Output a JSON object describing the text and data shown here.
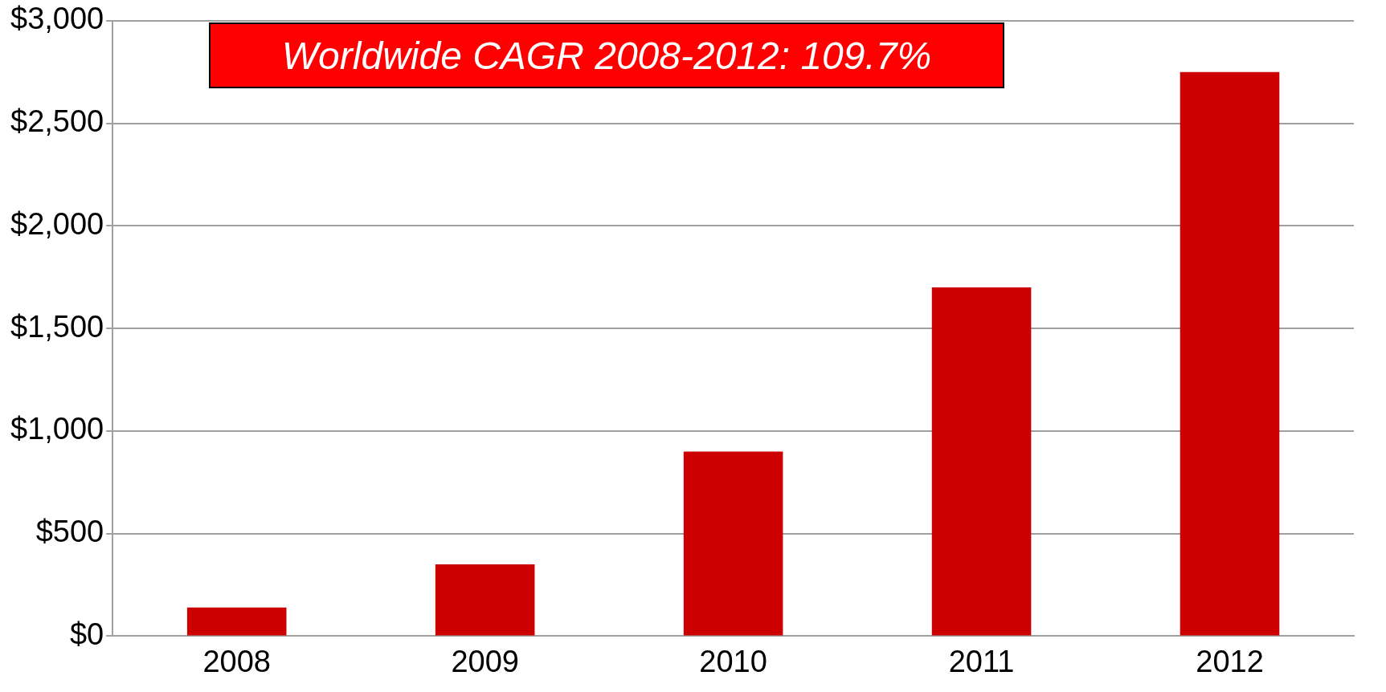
{
  "chart_data": {
    "type": "bar",
    "title": "Worldwide CAGR 2008-2012: 109.7%",
    "categories": [
      "2008",
      "2009",
      "2010",
      "2011",
      "2012"
    ],
    "values": [
      140,
      350,
      900,
      1700,
      2750
    ],
    "color": "#cc0000",
    "ylim": [
      0,
      3000
    ],
    "yticks": [
      {
        "value": 0,
        "label": "$0"
      },
      {
        "value": 500,
        "label": "$500"
      },
      {
        "value": 1000,
        "label": "$1,000"
      },
      {
        "value": 1500,
        "label": "$1,500"
      },
      {
        "value": 2000,
        "label": "$2,000"
      },
      {
        "value": 2500,
        "label": "$2,500"
      },
      {
        "value": 3000,
        "label": "$3,000"
      }
    ],
    "grid": "y",
    "legend": false
  }
}
